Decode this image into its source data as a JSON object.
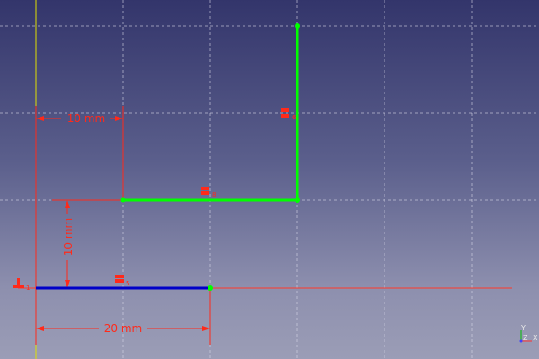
{
  "viewport": {
    "background_top": "#33356b",
    "background_bottom": "#9b9db6"
  },
  "colors": {
    "grid": "#d8d8e8",
    "sketch_line": "#00ff00",
    "selected_line": "#0000c8",
    "dimension": "#ff2a1a",
    "y_axis": "#e0e000",
    "vertex": "#00ff00"
  },
  "dimensions": {
    "horizontal_top": "10 mm",
    "vertical_left": "10 mm",
    "horizontal_bottom": "20 mm"
  },
  "constraints": {
    "vertical_line": "6",
    "horizontal_line": "8",
    "blue_line": "5",
    "origin": "1"
  },
  "axis_cross": {
    "y_label": "Y",
    "z_label": "Z",
    "x_label": "X"
  }
}
